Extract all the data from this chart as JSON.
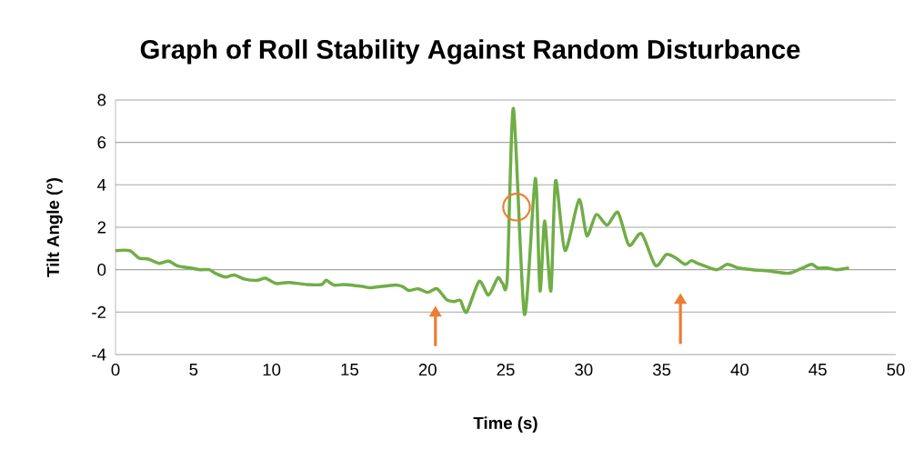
{
  "chart_data": {
    "type": "line",
    "title": "Graph of Roll Stability Against Random Disturbance",
    "xlabel": "Time (s)",
    "ylabel": "Tilt  Angle (°)",
    "x": [
      0,
      0.9,
      1.5,
      2.1,
      2.8,
      3.4,
      4.0,
      4.8,
      5.4,
      6.0,
      6.4,
      7.05,
      7.6,
      8.3,
      9.1,
      9.6,
      10.3,
      11.1,
      12.3,
      13.2,
      13.5,
      14.0,
      14.6,
      15.2,
      15.9,
      16.4,
      17.9,
      18.4,
      18.8,
      19.4,
      20.0,
      20.6,
      21.2,
      21.7,
      22.1,
      22.5,
      23.3,
      23.9,
      24.5,
      24.8,
      25.1,
      25.5,
      26.2,
      26.9,
      27.2,
      27.5,
      27.9,
      28.2,
      28.8,
      29.7,
      30.2,
      30.8,
      31.5,
      32.2,
      32.9,
      33.7,
      34.6,
      35.3,
      35.9,
      36.5,
      36.9,
      37.3,
      38.5,
      39.2,
      39.9,
      40.8,
      41.7,
      43.1,
      43.9,
      44.6,
      45.0,
      45.6,
      46.2,
      47.0
    ],
    "series": [
      {
        "color": "#70ad47",
        "values": [
          0.9,
          0.9,
          0.55,
          0.5,
          0.3,
          0.4,
          0.17,
          0.08,
          0,
          0,
          -0.17,
          -0.35,
          -0.25,
          -0.45,
          -0.5,
          -0.4,
          -0.65,
          -0.6,
          -0.7,
          -0.7,
          -0.5,
          -0.73,
          -0.7,
          -0.73,
          -0.8,
          -0.85,
          -0.72,
          -0.8,
          -0.98,
          -0.9,
          -1.07,
          -0.9,
          -1.4,
          -1.5,
          -1.45,
          -2.0,
          -0.55,
          -1.2,
          -0.38,
          -0.64,
          -0.43,
          7.6,
          -2.1,
          4.3,
          -1.0,
          2.3,
          -1.0,
          4.2,
          0.9,
          3.3,
          1.6,
          2.6,
          2.1,
          2.7,
          1.15,
          1.7,
          0.2,
          0.72,
          0.55,
          0.25,
          0.43,
          0.3,
          0,
          0.25,
          0.08,
          0,
          -0.05,
          -0.17,
          0.04,
          0.25,
          0.08,
          0.08,
          0,
          0.08
        ]
      },
      {
        "type": "scatter",
        "color": "#ed7d31",
        "marker": "circle",
        "x": [
          25.7
        ],
        "values": [
          2.95
        ]
      }
    ],
    "xlim": [
      0,
      50
    ],
    "xticks": [
      0,
      5,
      10,
      15,
      20,
      25,
      30,
      35,
      40,
      45,
      50
    ],
    "ylim": [
      -4,
      8
    ],
    "yticks": [
      -4,
      -2,
      0,
      2,
      4,
      6,
      8
    ],
    "grid": "y",
    "legend": false,
    "marker": "none",
    "line_style": "solid"
  }
}
